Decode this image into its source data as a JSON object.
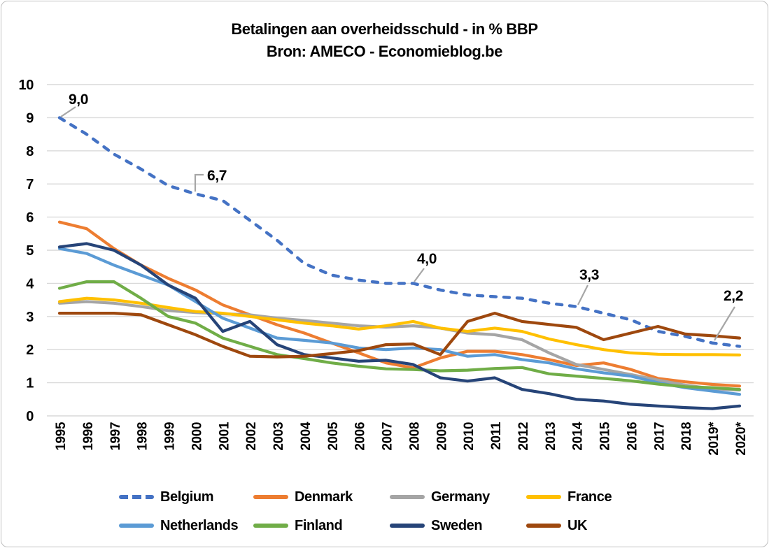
{
  "title": {
    "line1": "Betalingen aan overheidsschuld - in % BBP",
    "line2": "Bron: AMECO - Economieblog.be"
  },
  "chart_data": {
    "type": "line",
    "title": "Betalingen aan overheidsschuld - in % BBP",
    "subtitle": "Bron: AMECO - Economieblog.be",
    "xlabel": "",
    "ylabel": "",
    "ylim": [
      0,
      10
    ],
    "y_ticks": [
      0,
      1,
      2,
      3,
      4,
      5,
      6,
      7,
      8,
      9,
      10
    ],
    "grid": "horizontal-only",
    "gridline_color": "#D9D9D9",
    "leader_color": "#A6A6A6",
    "legend_position": "bottom",
    "x_labels": [
      "1995",
      "1996",
      "1997",
      "1998",
      "1999",
      "2000",
      "2001",
      "2002",
      "2003",
      "2004",
      "2005",
      "2006",
      "2007",
      "2008",
      "2009",
      "2010",
      "2011",
      "2012",
      "2013",
      "2014",
      "2015",
      "2016",
      "2017",
      "2018",
      "2019*",
      "2020*"
    ],
    "series": [
      {
        "name": "Belgium",
        "color": "#4472C4",
        "style": "dashed",
        "values": [
          9.0,
          8.5,
          7.9,
          7.45,
          6.95,
          6.7,
          6.5,
          5.9,
          5.3,
          4.6,
          4.25,
          4.1,
          4.0,
          4.0,
          3.8,
          3.65,
          3.6,
          3.55,
          3.4,
          3.3,
          3.1,
          2.9,
          2.55,
          2.4,
          2.2,
          2.1
        ]
      },
      {
        "name": "Denmark",
        "color": "#ED7D31",
        "style": "solid",
        "values": [
          5.85,
          5.65,
          5.05,
          4.55,
          4.15,
          3.8,
          3.35,
          3.05,
          2.75,
          2.5,
          2.2,
          1.9,
          1.6,
          1.45,
          1.75,
          1.95,
          1.95,
          1.85,
          1.7,
          1.52,
          1.6,
          1.4,
          1.13,
          1.03,
          0.95,
          0.9
        ]
      },
      {
        "name": "Germany",
        "color": "#A5A5A5",
        "style": "solid",
        "values": [
          3.4,
          3.45,
          3.4,
          3.3,
          3.18,
          3.12,
          3.08,
          3.05,
          2.95,
          2.88,
          2.8,
          2.72,
          2.68,
          2.72,
          2.65,
          2.5,
          2.45,
          2.3,
          1.9,
          1.55,
          1.4,
          1.25,
          1.08,
          0.93,
          0.82,
          0.78
        ]
      },
      {
        "name": "France",
        "color": "#FFC000",
        "style": "solid",
        "values": [
          3.45,
          3.55,
          3.5,
          3.4,
          3.27,
          3.15,
          3.1,
          3.0,
          2.9,
          2.8,
          2.72,
          2.62,
          2.72,
          2.85,
          2.65,
          2.55,
          2.65,
          2.55,
          2.32,
          2.15,
          2.0,
          1.9,
          1.86,
          1.85,
          1.85,
          1.84
        ]
      },
      {
        "name": "Netherlands",
        "color": "#5B9BD5",
        "style": "solid",
        "values": [
          5.05,
          4.9,
          4.55,
          4.25,
          3.95,
          3.45,
          2.95,
          2.65,
          2.35,
          2.28,
          2.2,
          2.05,
          2.0,
          2.05,
          2.0,
          1.8,
          1.85,
          1.7,
          1.6,
          1.42,
          1.3,
          1.2,
          1.0,
          0.85,
          0.75,
          0.65
        ]
      },
      {
        "name": "Finland",
        "color": "#70AD47",
        "style": "solid",
        "values": [
          3.85,
          4.05,
          4.05,
          3.55,
          3.0,
          2.8,
          2.35,
          2.1,
          1.85,
          1.73,
          1.6,
          1.5,
          1.42,
          1.4,
          1.36,
          1.38,
          1.43,
          1.46,
          1.27,
          1.2,
          1.13,
          1.06,
          0.96,
          0.88,
          0.85,
          0.8
        ]
      },
      {
        "name": "Sweden",
        "color": "#264478",
        "style": "solid",
        "values": [
          5.1,
          5.2,
          5.0,
          4.55,
          3.95,
          3.55,
          2.55,
          2.85,
          2.15,
          1.85,
          1.75,
          1.65,
          1.68,
          1.55,
          1.15,
          1.05,
          1.15,
          0.8,
          0.67,
          0.5,
          0.45,
          0.35,
          0.3,
          0.25,
          0.22,
          0.3
        ]
      },
      {
        "name": "UK",
        "color": "#9E480E",
        "style": "solid",
        "values": [
          3.1,
          3.1,
          3.1,
          3.05,
          2.75,
          2.45,
          2.1,
          1.8,
          1.78,
          1.8,
          1.88,
          1.97,
          2.15,
          2.17,
          1.85,
          2.85,
          3.1,
          2.85,
          2.76,
          2.67,
          2.3,
          2.5,
          2.7,
          2.47,
          2.42,
          2.35
        ]
      }
    ],
    "annotations": [
      {
        "label": "9,0",
        "series": "Belgium",
        "x": "1995",
        "value": 9.0
      },
      {
        "label": "6,7",
        "series": "Belgium",
        "x": "2000",
        "value": 6.7
      },
      {
        "label": "4,0",
        "series": "Belgium",
        "x": "2008",
        "value": 4.0
      },
      {
        "label": "3,3",
        "series": "Belgium",
        "x": "2014",
        "value": 3.3
      },
      {
        "label": "2,2",
        "series": "Belgium",
        "x": "2019*",
        "value": 2.2
      }
    ],
    "legend_rows": [
      [
        "Belgium",
        "Denmark",
        "Germany",
        "France"
      ],
      [
        "Netherlands",
        "Finland",
        "Sweden",
        "UK"
      ]
    ]
  }
}
